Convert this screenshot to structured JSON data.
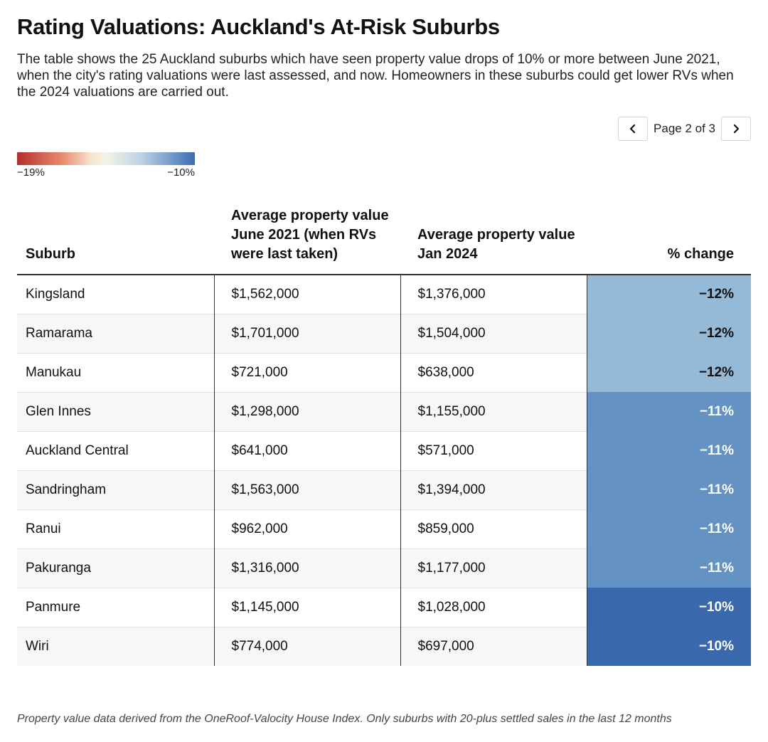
{
  "title": "Rating Valuations: Auckland's At-Risk Suburbs",
  "subtitle": "The table shows the 25 Auckland suburbs which have seen property value drops of 10% or more between June 2021, when the city's rating valuations were last assessed, and now. Homeowners in these suburbs could get lower RVs when the 2024 valuations are carried out.",
  "pagination": {
    "label": "Page 2 of 3",
    "prev_icon": "chevron-left-icon",
    "next_icon": "chevron-right-icon"
  },
  "legend": {
    "min_label": "−19%",
    "max_label": "−10%",
    "min_value": -19,
    "max_value": -10,
    "colors": [
      "#b32d2e",
      "#f5f2e8",
      "#3a6db3"
    ]
  },
  "footnote": "Property value data derived from the OneRoof-Valocity House Index. Only suburbs with 20-plus settled sales in the last 12 months",
  "chart_data": {
    "type": "table",
    "columns": [
      "Suburb",
      "Average property value June 2021 (when RVs were last taken)",
      "Average property value Jan 2024",
      "% change"
    ],
    "rows": [
      {
        "suburb": "Kingsland",
        "june_2021": "$1,562,000",
        "jan_2024": "$1,376,000",
        "change": "−12%",
        "change_value": -12
      },
      {
        "suburb": "Ramarama",
        "june_2021": "$1,701,000",
        "jan_2024": "$1,504,000",
        "change": "−12%",
        "change_value": -12
      },
      {
        "suburb": "Manukau",
        "june_2021": "$721,000",
        "jan_2024": "$638,000",
        "change": "−12%",
        "change_value": -12
      },
      {
        "suburb": "Glen Innes",
        "june_2021": "$1,298,000",
        "jan_2024": "$1,155,000",
        "change": "−11%",
        "change_value": -11
      },
      {
        "suburb": "Auckland Central",
        "june_2021": "$641,000",
        "jan_2024": "$571,000",
        "change": "−11%",
        "change_value": -11
      },
      {
        "suburb": "Sandringham",
        "june_2021": "$1,563,000",
        "jan_2024": "$1,394,000",
        "change": "−11%",
        "change_value": -11
      },
      {
        "suburb": "Ranui",
        "june_2021": "$962,000",
        "jan_2024": "$859,000",
        "change": "−11%",
        "change_value": -11
      },
      {
        "suburb": "Pakuranga",
        "june_2021": "$1,316,000",
        "jan_2024": "$1,177,000",
        "change": "−11%",
        "change_value": -11
      },
      {
        "suburb": "Panmure",
        "june_2021": "$1,145,000",
        "jan_2024": "$1,028,000",
        "change": "−10%",
        "change_value": -10
      },
      {
        "suburb": "Wiri",
        "june_2021": "$774,000",
        "jan_2024": "$697,000",
        "change": "−10%",
        "change_value": -10
      }
    ],
    "cell_colors": {
      "-12": "#95bad8",
      "-11": "#6492c2",
      "-10": "#3a68ad"
    },
    "text_colors": {
      "-12": "#111111",
      "-11": "#ffffff",
      "-10": "#ffffff"
    }
  }
}
